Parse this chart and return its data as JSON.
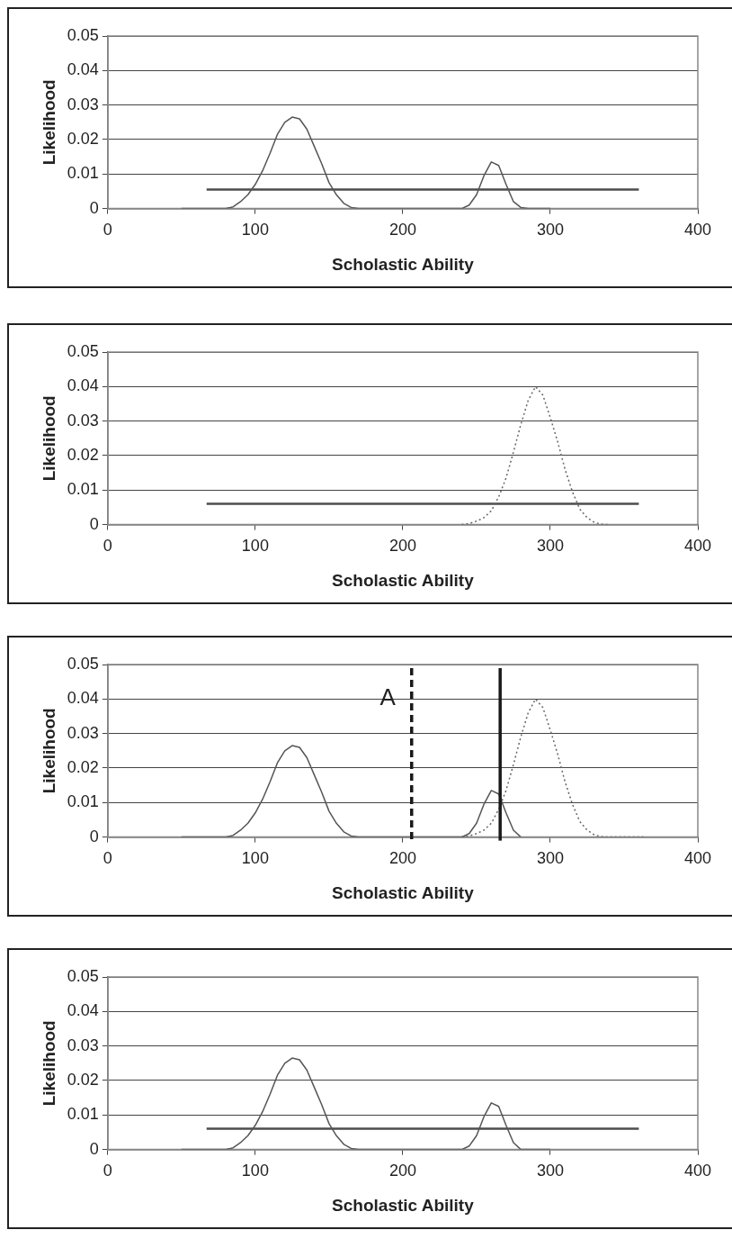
{
  "chart_data": [
    {
      "type": "line",
      "xlabel": "Scholastic Ability",
      "ylabel": "Likelihood",
      "xlim": [
        0,
        400
      ],
      "xticks": [
        0,
        100,
        200,
        300,
        400
      ],
      "ylim": [
        0,
        0.05
      ],
      "yticks": [
        0,
        0.01,
        0.02,
        0.03,
        0.04,
        0.05
      ],
      "grid": "y",
      "legend": false,
      "series": [
        {
          "color": "#555555",
          "line_style": "solid",
          "x": [
            50,
            80,
            85,
            90,
            95,
            100,
            105,
            110,
            115,
            120,
            125,
            130,
            135,
            140,
            145,
            150,
            155,
            160,
            165,
            170,
            200,
            225,
            240,
            245,
            250,
            255,
            260,
            265,
            270,
            275,
            280,
            285,
            300
          ],
          "values": [
            0,
            0,
            0.0005,
            0.002,
            0.004,
            0.007,
            0.011,
            0.016,
            0.0215,
            0.025,
            0.0265,
            0.026,
            0.023,
            0.018,
            0.013,
            0.0075,
            0.004,
            0.0015,
            0.0003,
            0,
            0,
            0,
            0,
            0.001,
            0.004,
            0.0095,
            0.0135,
            0.0125,
            0.007,
            0.002,
            0.0003,
            0,
            0
          ]
        },
        {
          "color": "#4d4d4d",
          "line_style": "solid",
          "x": [
            67,
            360
          ],
          "values": [
            0.0055,
            0.0055
          ]
        }
      ]
    },
    {
      "type": "line",
      "xlabel": "Scholastic Ability",
      "ylabel": "Likelihood",
      "xlim": [
        0,
        400
      ],
      "xticks": [
        0,
        100,
        200,
        300,
        400
      ],
      "ylim": [
        0,
        0.05
      ],
      "yticks": [
        0,
        0.01,
        0.02,
        0.03,
        0.04,
        0.05
      ],
      "grid": "y",
      "legend": false,
      "series": [
        {
          "color": "#666666",
          "line_style": "dotted",
          "x": [
            240,
            245,
            250,
            255,
            260,
            265,
            270,
            275,
            280,
            285,
            290,
            295,
            300,
            305,
            310,
            315,
            320,
            325,
            330,
            335,
            340
          ],
          "values": [
            0,
            0.0003,
            0.001,
            0.002,
            0.004,
            0.008,
            0.0135,
            0.021,
            0.029,
            0.036,
            0.04,
            0.0375,
            0.031,
            0.024,
            0.016,
            0.0095,
            0.0045,
            0.002,
            0.0006,
            0.0001,
            0
          ]
        },
        {
          "color": "#4d4d4d",
          "line_style": "solid",
          "x": [
            67,
            360
          ],
          "values": [
            0.006,
            0.006
          ]
        }
      ]
    },
    {
      "type": "line",
      "xlabel": "Scholastic Ability",
      "ylabel": "Likelihood",
      "xlim": [
        0,
        400
      ],
      "xticks": [
        0,
        100,
        200,
        300,
        400
      ],
      "ylim": [
        0,
        0.05
      ],
      "yticks": [
        0,
        0.01,
        0.02,
        0.03,
        0.04,
        0.05
      ],
      "grid": "y",
      "legend": false,
      "series": [
        {
          "color": "#555555",
          "line_style": "solid",
          "x": [
            50,
            80,
            85,
            90,
            95,
            100,
            105,
            110,
            115,
            120,
            125,
            130,
            135,
            140,
            145,
            150,
            155,
            160,
            165,
            170,
            200,
            215,
            240,
            245,
            250,
            255,
            260,
            265,
            270,
            275,
            280
          ],
          "values": [
            0,
            0,
            0.0005,
            0.002,
            0.004,
            0.007,
            0.011,
            0.016,
            0.0215,
            0.025,
            0.0265,
            0.026,
            0.023,
            0.018,
            0.013,
            0.0075,
            0.004,
            0.0015,
            0.0003,
            0,
            0,
            0,
            0,
            0.001,
            0.004,
            0.0095,
            0.0135,
            0.0125,
            0.007,
            0.002,
            0
          ]
        },
        {
          "color": "#666666",
          "line_style": "dotted",
          "x": [
            240,
            245,
            250,
            255,
            260,
            265,
            270,
            275,
            280,
            285,
            290,
            295,
            300,
            305,
            310,
            315,
            320,
            325,
            330,
            335,
            340,
            365
          ],
          "values": [
            0,
            0.0003,
            0.001,
            0.002,
            0.004,
            0.008,
            0.0135,
            0.021,
            0.029,
            0.036,
            0.04,
            0.0375,
            0.031,
            0.024,
            0.016,
            0.0095,
            0.0045,
            0.002,
            0.0006,
            0.0001,
            0,
            0
          ]
        }
      ],
      "ref_lines": [
        {
          "axis": "x",
          "value": 206,
          "label": "A",
          "color": "#1a1a1a",
          "line_style": "dashed"
        },
        {
          "axis": "x",
          "value": 266,
          "color": "#1a1a1a",
          "line_style": "solid"
        }
      ]
    },
    {
      "type": "line",
      "xlabel": "Scholastic Ability",
      "ylabel": "Likelihood",
      "xlim": [
        0,
        400
      ],
      "xticks": [
        0,
        100,
        200,
        300,
        400
      ],
      "ylim": [
        0,
        0.05
      ],
      "yticks": [
        0,
        0.01,
        0.02,
        0.03,
        0.04,
        0.05
      ],
      "grid": "y",
      "legend": false,
      "series": [
        {
          "color": "#555555",
          "line_style": "solid",
          "x": [
            50,
            80,
            85,
            90,
            95,
            100,
            105,
            110,
            115,
            120,
            125,
            130,
            135,
            140,
            145,
            150,
            155,
            160,
            165,
            170,
            200,
            225,
            240,
            245,
            250,
            255,
            260,
            265,
            270,
            275,
            280,
            300
          ],
          "values": [
            0,
            0,
            0.0005,
            0.002,
            0.004,
            0.007,
            0.011,
            0.016,
            0.0215,
            0.025,
            0.0265,
            0.026,
            0.023,
            0.018,
            0.013,
            0.0075,
            0.004,
            0.0015,
            0.0003,
            0,
            0,
            0,
            0,
            0.001,
            0.004,
            0.0095,
            0.0135,
            0.0125,
            0.007,
            0.002,
            0,
            0
          ]
        },
        {
          "color": "#4d4d4d",
          "line_style": "solid",
          "x": [
            67,
            360
          ],
          "values": [
            0.006,
            0.006
          ]
        }
      ]
    }
  ]
}
